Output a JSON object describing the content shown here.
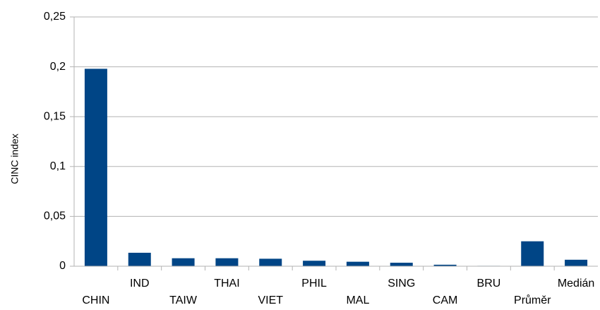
{
  "chart_data": {
    "type": "bar",
    "y_label": "CINC index",
    "categories": [
      "CHIN",
      "IND",
      "TAIW",
      "THAI",
      "VIET",
      "PHIL",
      "MAL",
      "SING",
      "CAM",
      "BRU",
      "Průměr",
      "Medián"
    ],
    "values": [
      0.198,
      0.0135,
      0.008,
      0.008,
      0.0075,
      0.0055,
      0.0045,
      0.0035,
      0.0015,
      0.0004,
      0.025,
      0.0065
    ],
    "color": "#004586",
    "ylim": [
      0,
      0.25
    ],
    "yticks": [
      0,
      {
        "value": 0.05,
        "label": "0,05"
      },
      {
        "value": 0.1,
        "label": "0,1"
      },
      {
        "value": 0.15,
        "label": "0,15"
      },
      {
        "value": 0.2,
        "label": "0,2"
      },
      {
        "value": 0.25,
        "label": "0,25"
      }
    ],
    "grid": true
  }
}
